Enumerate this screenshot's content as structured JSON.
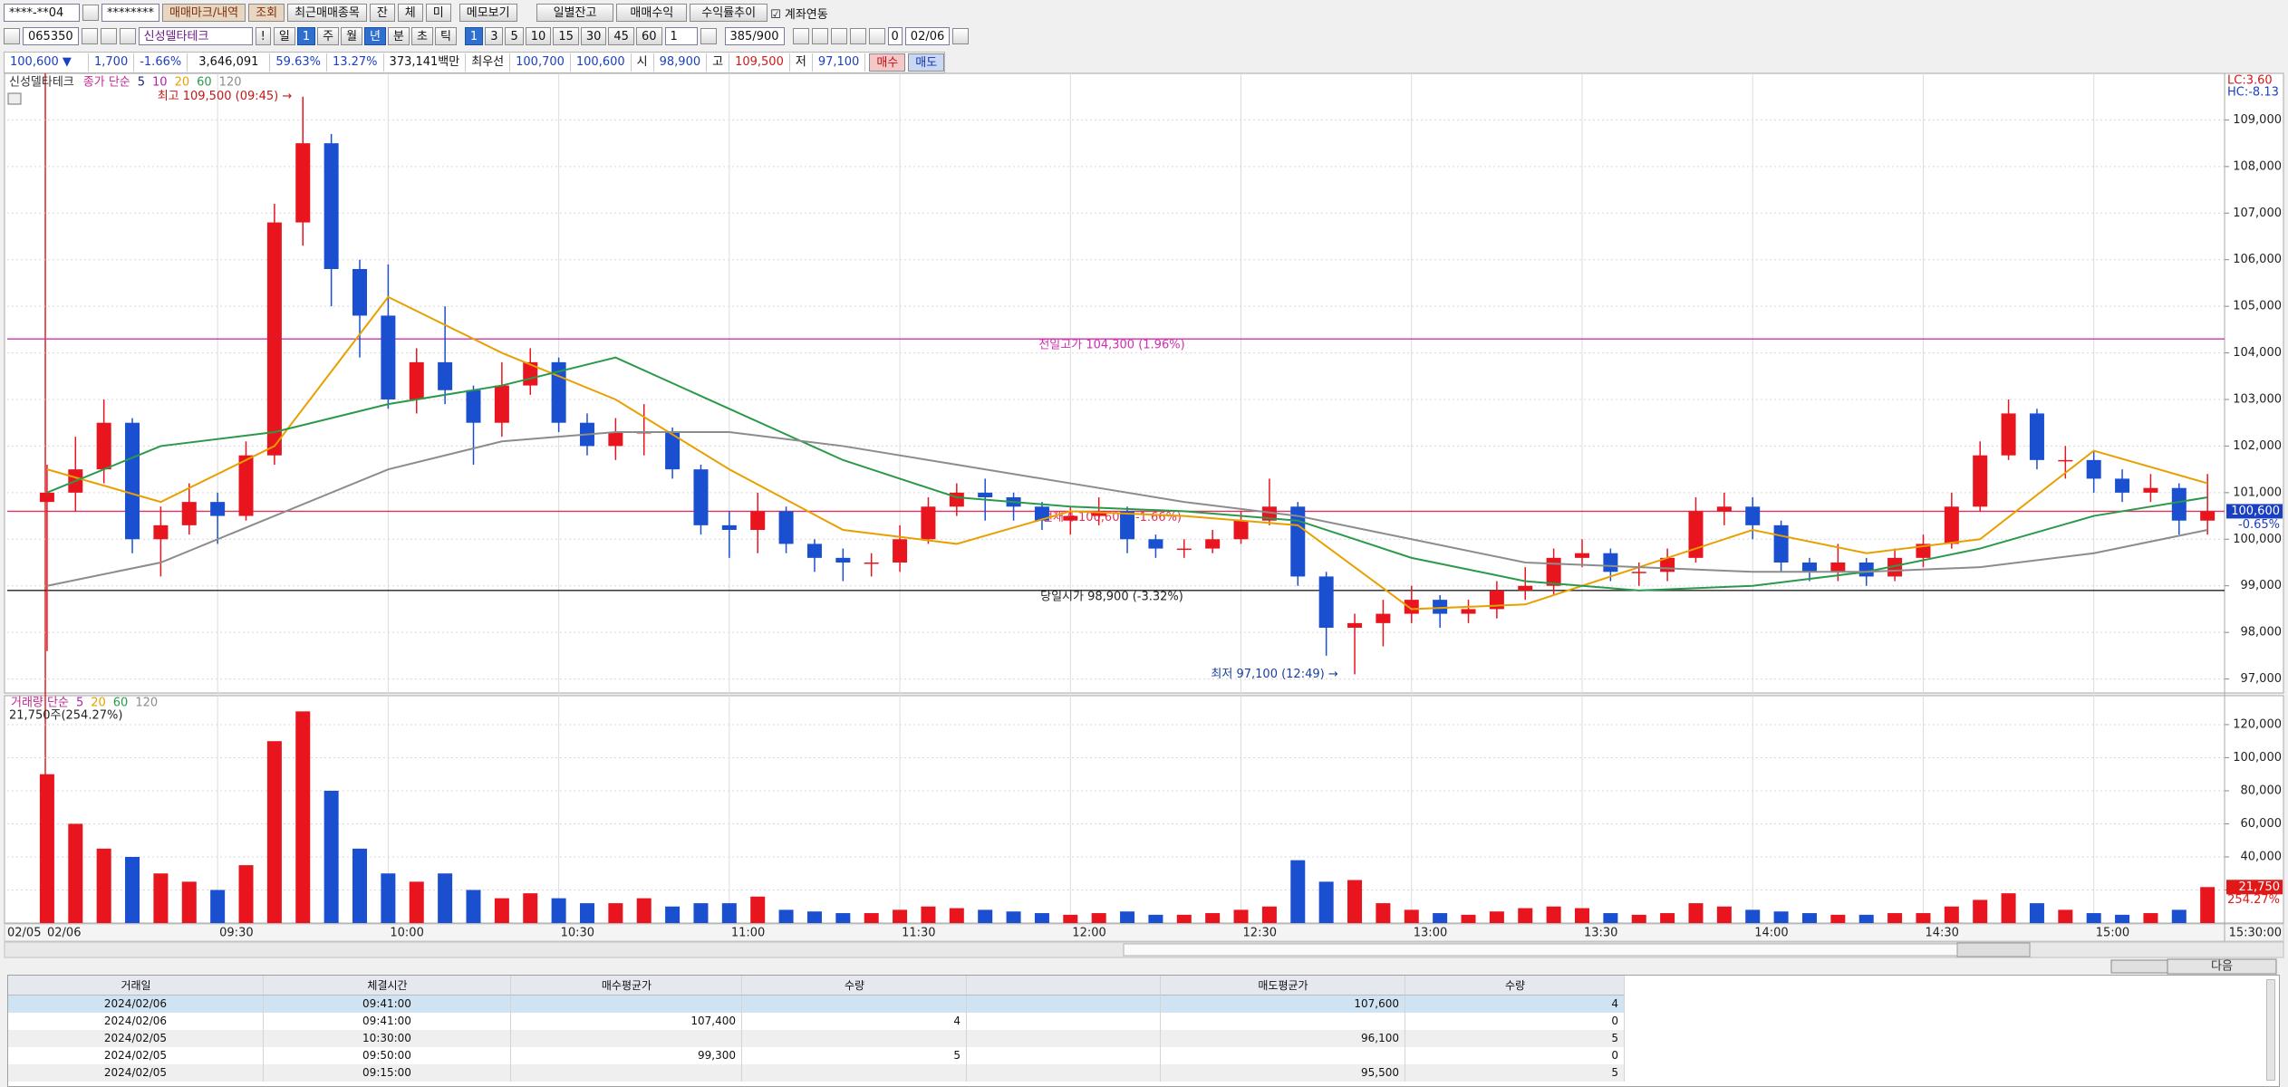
{
  "toolbar": {
    "account": "****-**04",
    "password": "********",
    "buttons": [
      "매매마크/내역",
      "조회",
      "최근매매종목",
      "잔",
      "체",
      "미",
      "메모보기",
      "일별잔고",
      "매매수익",
      "수익률추이"
    ],
    "account_link": "계좌연동"
  },
  "symbol_bar": {
    "code": "065350",
    "name": "신성델타테크",
    "alert": "!",
    "periods": [
      "일",
      "1",
      "주",
      "월",
      "년",
      "분",
      "초",
      "틱"
    ],
    "intervals": [
      "1",
      "3",
      "5",
      "10",
      "15",
      "30",
      "45",
      "60"
    ],
    "interval_input": "1",
    "range": "385/900",
    "offset": "0",
    "date": "02/06"
  },
  "quote": {
    "price": "100,600 ▼",
    "change": "1,700",
    "change_rate": "-1.66%",
    "volume": "3,646,091",
    "ratio_1": "59.63%",
    "ratio_2": "13.27%",
    "amount": "373,141백만",
    "best_label": "최우선",
    "best_ask": "100,700",
    "best_bid": "100,600",
    "open_label": "시",
    "open": "98,900",
    "high_label": "고",
    "high": "109,500",
    "low_label": "저",
    "low": "97,100",
    "buy": "매수",
    "sell": "매도"
  },
  "chart_data": [
    {
      "type": "candlestick",
      "title": "신성델타테크",
      "legend_title": "종가 단순",
      "x": [
        0,
        5,
        10,
        15,
        20,
        25,
        30,
        35,
        40,
        45,
        50,
        55,
        60,
        65,
        70,
        75,
        80,
        85,
        90,
        95,
        100,
        105,
        110,
        115,
        120,
        125,
        130,
        135,
        140,
        145,
        150,
        155,
        160,
        165,
        170,
        175,
        180,
        185,
        190,
        195,
        200,
        205,
        210,
        215,
        220,
        225,
        230,
        235,
        240,
        245,
        250,
        255,
        260,
        265,
        270,
        275,
        280,
        285,
        290,
        295,
        300,
        305,
        310,
        315,
        320,
        325,
        330,
        335,
        340,
        345,
        350,
        355,
        360,
        365,
        370,
        375,
        380
      ],
      "open": [
        100800,
        101000,
        101500,
        102500,
        100000,
        100300,
        100800,
        100500,
        101800,
        106800,
        108500,
        105800,
        104800,
        103000,
        103800,
        103200,
        102500,
        103300,
        103800,
        102500,
        102000,
        102300,
        102300,
        101500,
        100300,
        100200,
        100600,
        99900,
        99600,
        99500,
        99500,
        100000,
        100700,
        101000,
        100900,
        100700,
        100400,
        100500,
        100600,
        100000,
        99800,
        99800,
        100000,
        100400,
        100700,
        99200,
        98100,
        98200,
        98400,
        98700,
        98400,
        98500,
        98900,
        99000,
        99600,
        99700,
        99300,
        99300,
        99600,
        100600,
        100700,
        100300,
        99500,
        99300,
        99500,
        99200,
        99600,
        99900,
        100700,
        101800,
        102700,
        101700,
        101700,
        101300,
        101000,
        101100,
        100400
      ],
      "high": [
        101600,
        102200,
        103000,
        102600,
        100700,
        101200,
        101000,
        102100,
        107200,
        109500,
        108700,
        106000,
        105900,
        104100,
        105000,
        103300,
        103800,
        104100,
        103900,
        102700,
        102600,
        102900,
        102400,
        101600,
        100600,
        101000,
        100700,
        100000,
        99800,
        99700,
        100300,
        100900,
        101200,
        101300,
        101000,
        100800,
        100700,
        100900,
        100700,
        100100,
        100000,
        100200,
        100600,
        101300,
        100800,
        99300,
        98400,
        98700,
        99000,
        98800,
        98700,
        99100,
        99400,
        99800,
        100000,
        99800,
        99500,
        99800,
        100900,
        101000,
        100900,
        100400,
        99600,
        99900,
        99600,
        99800,
        100100,
        101000,
        102100,
        103000,
        102800,
        102000,
        101900,
        101500,
        101400,
        101200,
        101400
      ],
      "low": [
        97600,
        100600,
        101200,
        99700,
        99200,
        100100,
        99900,
        100400,
        101600,
        106300,
        105000,
        103900,
        102800,
        102700,
        102900,
        101600,
        102200,
        103100,
        102300,
        101800,
        101700,
        101800,
        101300,
        100100,
        99600,
        99700,
        99700,
        99300,
        99100,
        99200,
        99300,
        99900,
        100500,
        100400,
        100400,
        100200,
        100100,
        100300,
        99700,
        99600,
        99600,
        99700,
        99900,
        100300,
        99000,
        97500,
        97100,
        97700,
        98200,
        98100,
        98200,
        98300,
        98700,
        98800,
        99400,
        99100,
        99000,
        99100,
        99500,
        100300,
        100000,
        99300,
        99100,
        99100,
        99000,
        99100,
        99400,
        99800,
        100600,
        101700,
        101500,
        101300,
        101000,
        100800,
        100800,
        100100,
        100100
      ],
      "close": [
        101000,
        101500,
        102500,
        100000,
        100300,
        100800,
        100500,
        101800,
        106800,
        108500,
        105800,
        104800,
        103000,
        103800,
        103200,
        102500,
        103300,
        103800,
        102500,
        102000,
        102300,
        102300,
        101500,
        100300,
        100200,
        100600,
        99900,
        99600,
        99500,
        99500,
        100000,
        100700,
        101000,
        100900,
        100700,
        100400,
        100500,
        100600,
        100000,
        99800,
        99800,
        100000,
        100400,
        100700,
        99200,
        98100,
        98200,
        98400,
        98700,
        98400,
        98500,
        98900,
        99000,
        99600,
        99700,
        99300,
        99300,
        99600,
        100600,
        100700,
        100300,
        99500,
        99300,
        99500,
        99200,
        99600,
        99900,
        100700,
        101800,
        102700,
        101700,
        101700,
        101300,
        101000,
        101100,
        100400,
        100600
      ],
      "up_color": "#e8141e",
      "down_color": "#1a4fd0",
      "moving_averages": [
        {
          "name": "5",
          "color": "#1a237e"
        },
        {
          "name": "10",
          "color": "#b020b0"
        },
        {
          "name": "20",
          "color": "#e8a000",
          "x": [
            0,
            20,
            40,
            60,
            80,
            100,
            120,
            140,
            160,
            180,
            200,
            220,
            240,
            260,
            280,
            300,
            320,
            340,
            360,
            380
          ],
          "values": [
            101500,
            100800,
            102000,
            105200,
            104000,
            103000,
            101500,
            100200,
            99900,
            100600,
            100500,
            100300,
            98500,
            98600,
            99400,
            100200,
            99700,
            100000,
            101900,
            101200
          ]
        },
        {
          "name": "60",
          "color": "#2a9a4a",
          "x": [
            0,
            20,
            40,
            60,
            80,
            100,
            120,
            140,
            160,
            180,
            200,
            220,
            240,
            260,
            280,
            300,
            320,
            340,
            360,
            380
          ],
          "values": [
            101000,
            102000,
            102300,
            102900,
            103300,
            103900,
            102800,
            101700,
            100900,
            100700,
            100600,
            100400,
            99600,
            99100,
            98900,
            99000,
            99300,
            99800,
            100500,
            100900
          ]
        },
        {
          "name": "120",
          "color": "#8c8c8c",
          "x": [
            0,
            20,
            40,
            60,
            80,
            100,
            120,
            140,
            160,
            180,
            200,
            220,
            240,
            260,
            280,
            300,
            320,
            340,
            360,
            380
          ],
          "values": [
            99000,
            99500,
            100500,
            101500,
            102100,
            102300,
            102300,
            102000,
            101600,
            101200,
            100800,
            100500,
            100000,
            99500,
            99400,
            99300,
            99300,
            99400,
            99700,
            100200
          ]
        }
      ],
      "xlim": [
        -7,
        383
      ],
      "ylim": [
        96700,
        110000
      ],
      "yticks": [
        {
          "value": 97000,
          "label": "97,000"
        },
        {
          "value": 98000,
          "label": "98,000"
        },
        {
          "value": 99000,
          "label": "99,000"
        },
        {
          "value": 100000,
          "label": "100,000"
        },
        {
          "value": 101000,
          "label": "101,000"
        },
        {
          "value": 102000,
          "label": "102,000"
        },
        {
          "value": 103000,
          "label": "103,000"
        },
        {
          "value": 104000,
          "label": "104,000"
        },
        {
          "value": 105000,
          "label": "105,000"
        },
        {
          "value": 106000,
          "label": "106,000"
        },
        {
          "value": 107000,
          "label": "107,000"
        },
        {
          "value": 108000,
          "label": "108,000"
        },
        {
          "value": 109000,
          "label": "109,000"
        }
      ],
      "reference_lines": [
        {
          "value": 104300,
          "label": "전일고가 104,300 (1.96%)",
          "color": "#d030b0"
        },
        {
          "value": 100600,
          "label": "현재가 100,600 (-1.66%)",
          "color": "#e0325a"
        },
        {
          "value": 98900,
          "label": "당일시가 98,900 (-3.32%)",
          "color": "#222222"
        }
      ],
      "annotations": [
        {
          "text": "최고 109,500 (09:45) →",
          "x": 45,
          "value": 109500,
          "color": "#c01818"
        },
        {
          "text": "최저 97,100 (12:49) →",
          "x": 229,
          "value": 97100,
          "color": "#1a3fa0"
        }
      ],
      "lc_label": "LC:3.60",
      "hc_label": "HC:-8.13",
      "price_tag": {
        "value": 100600,
        "label": "100,600"
      },
      "price_change_tag": "-0.65%"
    },
    {
      "type": "bar",
      "title": "거래량 단순",
      "legend": [
        {
          "name": "5",
          "color": "#b020b0"
        },
        {
          "name": "20",
          "color": "#e8a000"
        },
        {
          "name": "60",
          "color": "#2a9a4a"
        },
        {
          "name": "120",
          "color": "#8c8c8c"
        }
      ],
      "summary": "21,750주(254.27%)",
      "x": [
        0,
        5,
        10,
        15,
        20,
        25,
        30,
        35,
        40,
        45,
        50,
        55,
        60,
        65,
        70,
        75,
        80,
        85,
        90,
        95,
        100,
        105,
        110,
        115,
        120,
        125,
        130,
        135,
        140,
        145,
        150,
        155,
        160,
        165,
        170,
        175,
        180,
        185,
        190,
        195,
        200,
        205,
        210,
        215,
        220,
        225,
        230,
        235,
        240,
        245,
        250,
        255,
        260,
        265,
        270,
        275,
        280,
        285,
        290,
        295,
        300,
        305,
        310,
        315,
        320,
        325,
        330,
        335,
        340,
        345,
        350,
        355,
        360,
        365,
        370,
        375,
        380
      ],
      "values": [
        90000,
        60000,
        45000,
        40000,
        30000,
        25000,
        20000,
        35000,
        110000,
        128000,
        80000,
        45000,
        30000,
        25000,
        30000,
        20000,
        15000,
        18000,
        15000,
        12000,
        12000,
        15000,
        10000,
        12000,
        12000,
        16000,
        8000,
        7000,
        6000,
        6000,
        8000,
        10000,
        9000,
        8000,
        7000,
        6000,
        5000,
        6000,
        7000,
        5000,
        5000,
        6000,
        8000,
        10000,
        38000,
        25000,
        26000,
        12000,
        8000,
        6000,
        5000,
        7000,
        9000,
        10000,
        9000,
        6000,
        5000,
        6000,
        12000,
        10000,
        8000,
        7000,
        6000,
        5000,
        5000,
        6000,
        6000,
        10000,
        14000,
        18000,
        12000,
        8000,
        6000,
        5000,
        6000,
        8000,
        21750
      ],
      "xlim": [
        -7,
        383
      ],
      "ylim": [
        0,
        137500
      ],
      "yticks": [
        {
          "value": 20000,
          "label": "20,000"
        },
        {
          "value": 40000,
          "label": "40,000"
        },
        {
          "value": 60000,
          "label": "60,000"
        },
        {
          "value": 80000,
          "label": "80,000"
        },
        {
          "value": 100000,
          "label": "100,000"
        },
        {
          "value": 120000,
          "label": "120,000"
        }
      ],
      "xticks": [
        {
          "value": 30,
          "label": "09:30"
        },
        {
          "value": 60,
          "label": "10:00"
        },
        {
          "value": 90,
          "label": "10:30"
        },
        {
          "value": 120,
          "label": "11:00"
        },
        {
          "value": 150,
          "label": "11:30"
        },
        {
          "value": 180,
          "label": "12:00"
        },
        {
          "value": 210,
          "label": "12:30"
        },
        {
          "value": 240,
          "label": "13:00"
        },
        {
          "value": 270,
          "label": "13:30"
        },
        {
          "value": 300,
          "label": "14:00"
        },
        {
          "value": 330,
          "label": "14:30"
        },
        {
          "value": 360,
          "label": "15:00"
        }
      ],
      "date_labels": [
        "02/05",
        "02/06"
      ],
      "x_end_label": "15:30:00",
      "volume_tag": {
        "value": 21750,
        "label": "21,750"
      },
      "volume_ratio_tag": "254.27%"
    }
  ],
  "trade_table": {
    "columns": [
      "거래일",
      "체결시간",
      "매수평균가",
      "수량",
      "매도평균가",
      "수량"
    ],
    "rows": [
      [
        "2024/02/06",
        "09:41:00",
        null,
        null,
        "107,600",
        "4"
      ],
      [
        "2024/02/06",
        "09:41:00",
        "107,400",
        "4",
        null,
        "0"
      ],
      [
        "2024/02/05",
        "10:30:00",
        null,
        null,
        "96,100",
        "5"
      ],
      [
        "2024/02/05",
        "09:50:00",
        "99,300",
        "5",
        null,
        "0"
      ],
      [
        "2024/02/05",
        "09:15:00",
        null,
        null,
        "95,500",
        "5"
      ]
    ]
  },
  "next_button": "다음"
}
